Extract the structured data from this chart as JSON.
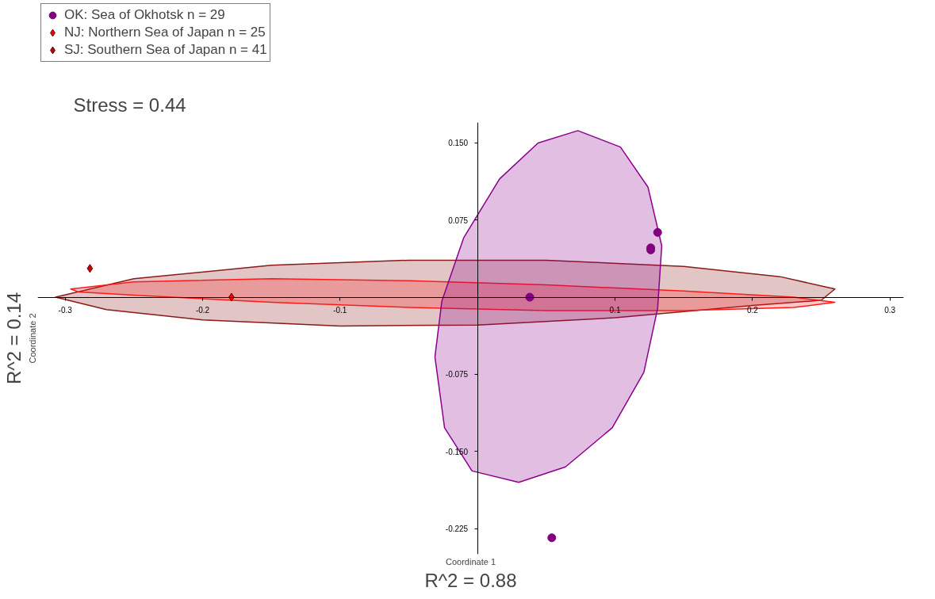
{
  "chart_data": {
    "type": "scatter",
    "xlabel": "Coordinate 1",
    "ylabel": "Coordinate 2",
    "xlim": [
      -0.32,
      0.31
    ],
    "ylim": [
      -0.25,
      0.17
    ],
    "xticks": [
      -0.3,
      -0.2,
      -0.1,
      0.1,
      0.2,
      0.3
    ],
    "yticks": [
      {
        "value": 0.15,
        "label": "0.150"
      },
      {
        "value": 0.075,
        "label": "0.075"
      },
      {
        "value": -0.075,
        "label": "-0.075"
      },
      {
        "value": -0.15,
        "label": "-0.150"
      },
      {
        "value": -0.225,
        "label": "-0.225"
      }
    ],
    "grid": false,
    "legend": "top left",
    "annotations": [
      "Stress = 0.44",
      "R^2 = 0.14",
      "R^2 = 0.88"
    ],
    "series": [
      {
        "type": "area",
        "color": "#8b1a1a",
        "x": [
          -0.307,
          -0.25,
          -0.15,
          -0.05,
          0.05,
          0.15,
          0.22,
          0.26,
          0.25,
          0.2,
          0.1,
          0.0,
          -0.1,
          -0.2,
          -0.27
        ],
        "values": [
          0.0,
          0.018,
          0.031,
          0.036,
          0.036,
          0.03,
          0.02,
          0.008,
          -0.003,
          -0.008,
          -0.02,
          -0.027,
          -0.028,
          -0.022,
          -0.012
        ]
      },
      {
        "type": "area",
        "color": "#ff1a1a",
        "x": [
          -0.296,
          -0.25,
          -0.15,
          -0.05,
          0.05,
          0.15,
          0.23,
          0.26,
          0.23,
          0.15,
          0.05,
          -0.05,
          -0.15,
          -0.25,
          -0.29
        ],
        "values": [
          0.008,
          0.015,
          0.018,
          0.016,
          0.012,
          0.006,
          0.0,
          -0.005,
          -0.01,
          -0.013,
          -0.013,
          -0.01,
          -0.005,
          0.002,
          0.005
        ]
      },
      {
        "type": "area",
        "color": "#8b008b",
        "x": [
          0.073,
          0.104,
          0.124,
          0.134,
          0.131,
          0.121,
          0.098,
          0.064,
          0.03,
          -0.004,
          -0.024,
          -0.031,
          -0.026,
          -0.01,
          0.016,
          0.044
        ],
        "values": [
          0.162,
          0.146,
          0.107,
          0.05,
          -0.011,
          -0.073,
          -0.127,
          -0.165,
          -0.18,
          -0.169,
          -0.127,
          -0.058,
          -0.004,
          0.058,
          0.115,
          0.15
        ]
      },
      {
        "name": "OK: Sea of Okhotsk n = 29",
        "color": "#800080",
        "marker": "circle",
        "x": [
          0.038,
          0.131,
          0.126,
          0.126,
          0.054
        ],
        "values": [
          0.0,
          0.063,
          0.046,
          0.048,
          -0.234
        ]
      },
      {
        "name": "NJ: Northern Sea of Japan n = 25",
        "color": "#ff0000",
        "marker": "diamond",
        "x": [
          -0.179
        ],
        "values": [
          0.0
        ]
      },
      {
        "name": "SJ: Southern Sea of Japan n = 41",
        "color": "#cc0000",
        "marker": "diamond",
        "x": [
          -0.282
        ],
        "values": [
          0.028
        ]
      }
    ]
  }
}
